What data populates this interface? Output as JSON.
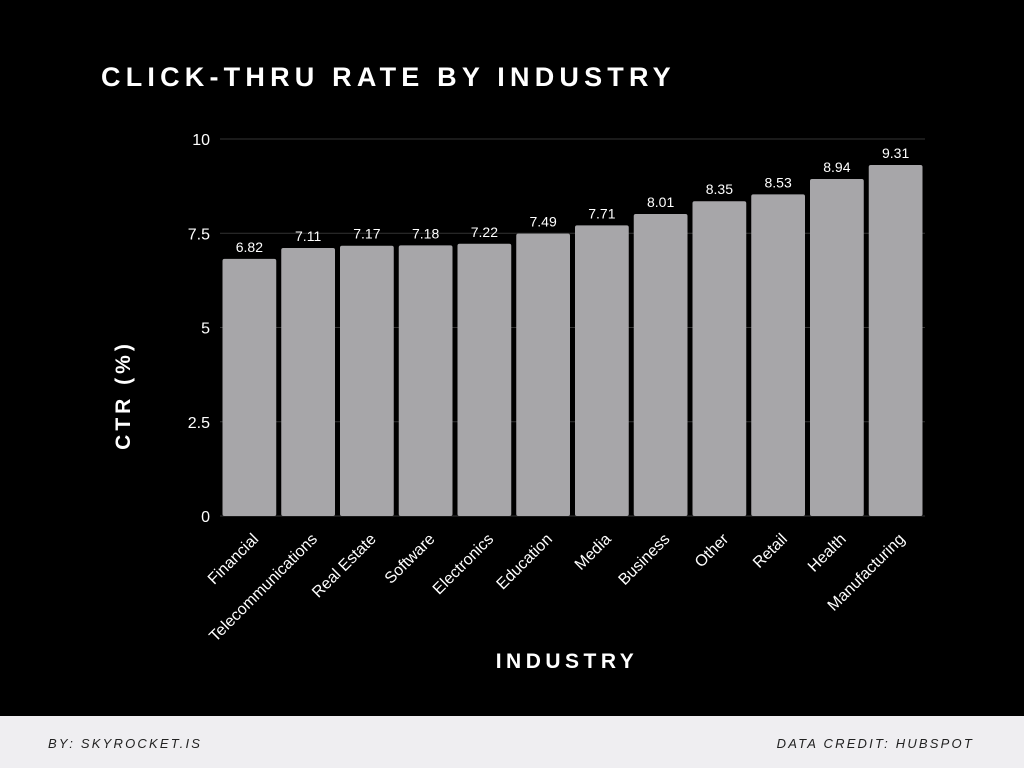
{
  "header": {
    "title": "CLICK-THRU RATE BY INDUSTRY"
  },
  "footer": {
    "byline": "BY: SKYROCKET.IS",
    "credit": "DATA CREDIT: HUBSPOT"
  },
  "colors": {
    "background": "#000000",
    "bar": "#a7a6a9",
    "text": "#ffffff",
    "gridline": "#333333",
    "footer_bg": "#efeef1"
  },
  "chart_data": {
    "type": "bar",
    "title": "CLICK-THRU RATE BY INDUSTRY",
    "xlabel": "INDUSTRY",
    "ylabel": "CTR (%)",
    "ylim": [
      0,
      10
    ],
    "yticks": [
      "0",
      "2.5",
      "5",
      "7.5",
      "10"
    ],
    "grid": true,
    "categories": [
      "Financial",
      "Telecommunications",
      "Real Estate",
      "Software",
      "Electronics",
      "Education",
      "Media",
      "Business",
      "Other",
      "Retail",
      "Health",
      "Manufacturing"
    ],
    "values": [
      6.82,
      7.11,
      7.17,
      7.18,
      7.22,
      7.49,
      7.71,
      8.01,
      8.35,
      8.53,
      8.94,
      9.31
    ],
    "value_labels": [
      "6.82",
      "7.11",
      "7.17",
      "7.18",
      "7.22",
      "7.49",
      "7.71",
      "8.01",
      "8.35",
      "8.53",
      "8.94",
      "9.31"
    ]
  }
}
